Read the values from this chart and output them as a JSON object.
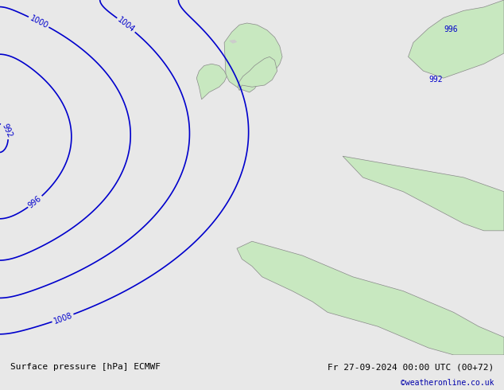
{
  "title_left": "Surface pressure [hPa] ECMWF",
  "title_right": "Fr 27-09-2024 00:00 UTC (00+72)",
  "credit": "©weatheronline.co.uk",
  "bg_color": "#e8e8e8",
  "land_color": "#c8e8c0",
  "sea_color": "#e0e0e8",
  "contour_color_blue": "#0000cc",
  "contour_color_black": "#000000",
  "contour_color_red": "#cc0000",
  "label_color": "#0000cc",
  "figsize": [
    6.34,
    4.9
  ],
  "dpi": 100
}
